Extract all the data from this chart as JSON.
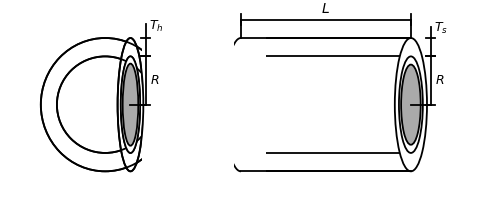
{
  "fig_width": 5.0,
  "fig_height": 1.98,
  "dpi": 100,
  "bg_color": "#ffffff",
  "line_color": "#000000",
  "fill_gray": "#aaaaaa",
  "fill_white": "#ffffff",
  "label_Th": "$T_h$",
  "label_Ts": "$T_s$",
  "label_R_left": "$R$",
  "label_R_right": "$R$",
  "label_L": "$L$"
}
